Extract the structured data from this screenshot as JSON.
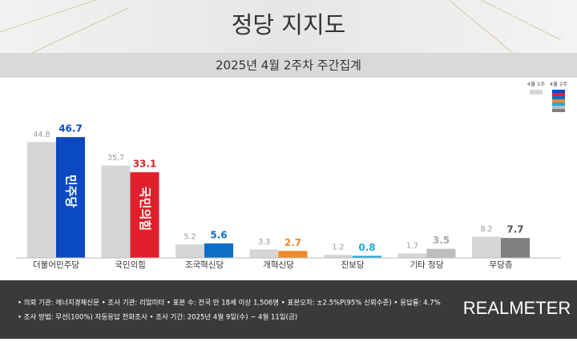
{
  "chart_data": {
    "type": "grouped_bar",
    "title": "정당 지지도",
    "subtitle": "2025년 4월 2주차 주간집계",
    "categories": [
      "더불어민주당",
      "국민의힘",
      "조국혁신당",
      "개혁신당",
      "진보당",
      "기타 정당",
      "무당층"
    ],
    "series": [
      {
        "name": "4월 1주",
        "color": "#d6d6d6",
        "label_color": "#9a9a9a",
        "values": [
          44.8,
          35.7,
          5.2,
          3.3,
          1.2,
          1.7,
          8.2
        ]
      },
      {
        "name": "4월 2주",
        "colors": [
          "#0b49c0",
          "#e1202b",
          "#0d6fc7",
          "#f0892a",
          "#1faad9",
          "#bdbdbd",
          "#7f7f7f"
        ],
        "label_colors": [
          "#0b49c0",
          "#e1202b",
          "#0d6fc7",
          "#f0892a",
          "#1faad9",
          "#a8a8a8",
          "#555555"
        ],
        "inner_labels": [
          "민주당",
          "국민의힘"
        ],
        "values": [
          46.7,
          33.1,
          5.6,
          2.7,
          0.8,
          3.5,
          7.7
        ]
      }
    ],
    "notes": [
      "• 의뢰 기관: 에너지경제신문  • 조사 기관: 리얼미터  • 표본 수: 전국 만 18세 이상 1,506명  • 표본오차: ±2.5%P(95% 신뢰수준)  • 응답률: 4.7%",
      "• 조사 방법: 무선(100%) 자동응답 전화조사  • 조사 기간: 2025년 4월 9일(수) ~ 4월 11일(금)"
    ],
    "logo": "REALMETER"
  }
}
